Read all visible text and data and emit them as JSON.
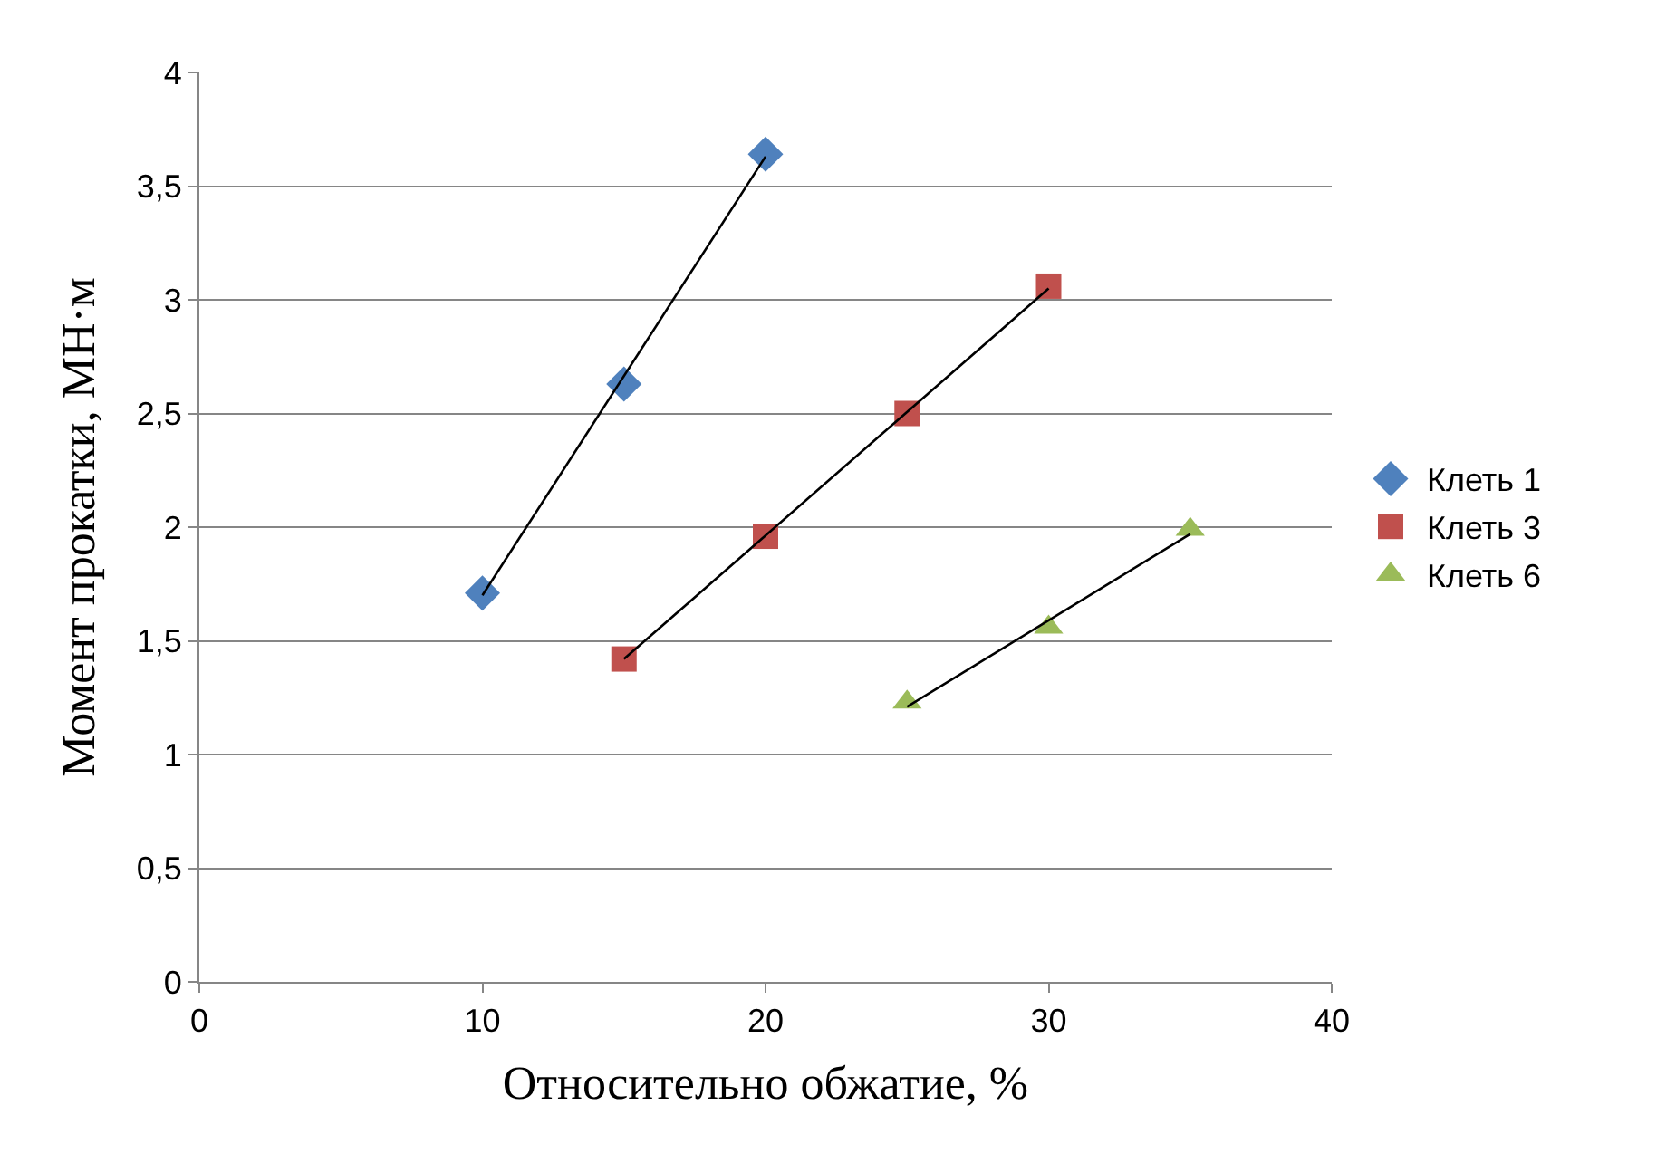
{
  "chart_data": {
    "type": "scatter",
    "xlabel": "Относительно обжатие, %",
    "ylabel": "Момент прокатки, МН·м",
    "xlim": [
      0,
      40
    ],
    "xticks": [
      0,
      10,
      20,
      30,
      40
    ],
    "ylim": [
      0,
      4
    ],
    "yticks": [
      {
        "value": 0,
        "label": "0"
      },
      {
        "value": 0.5,
        "label": "0,5"
      },
      {
        "value": 1,
        "label": "1"
      },
      {
        "value": 1.5,
        "label": "1,5"
      },
      {
        "value": 2,
        "label": "2"
      },
      {
        "value": 2.5,
        "label": "2,5"
      },
      {
        "value": 3,
        "label": "3"
      },
      {
        "value": 3.5,
        "label": "3,5"
      },
      {
        "value": 4,
        "label": "4"
      }
    ],
    "grid": "y",
    "legend": "right",
    "series": [
      {
        "name": "Клеть 1",
        "color": "#4f81bd",
        "marker": "diamond",
        "x": [
          10,
          15,
          20
        ],
        "values": [
          1.71,
          2.63,
          3.64
        ]
      },
      {
        "name": "Клеть 3",
        "color": "#c0504d",
        "marker": "square",
        "x": [
          15,
          20,
          25,
          30
        ],
        "values": [
          1.42,
          1.96,
          2.5,
          3.06
        ]
      },
      {
        "name": "Клеть 6",
        "color": "#9bbb59",
        "marker": "triangle",
        "x": [
          25,
          30,
          35
        ],
        "values": [
          1.23,
          1.56,
          1.99
        ]
      },
      {
        "type": "line",
        "color": "#000000",
        "marker": "none",
        "x": [
          10,
          20
        ],
        "values": [
          1.7,
          3.63
        ]
      },
      {
        "type": "line",
        "color": "#000000",
        "marker": "none",
        "x": [
          15,
          30
        ],
        "values": [
          1.42,
          3.05
        ]
      },
      {
        "type": "line",
        "color": "#000000",
        "marker": "none",
        "x": [
          25,
          35
        ],
        "values": [
          1.21,
          1.97
        ]
      }
    ]
  }
}
